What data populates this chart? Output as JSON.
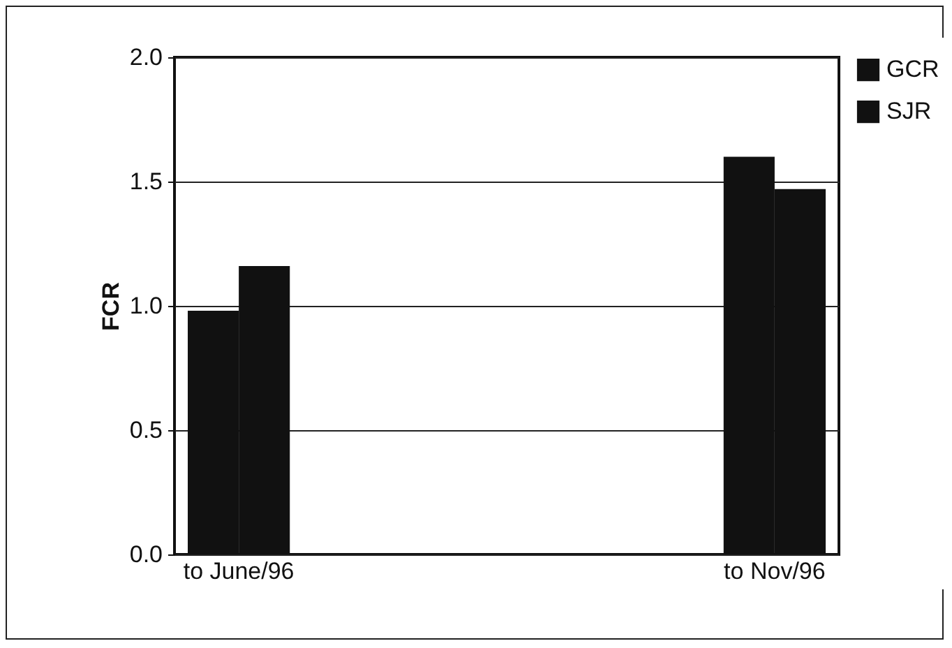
{
  "chart_data": {
    "type": "bar",
    "categories": [
      "to June/96",
      "to Nov/96"
    ],
    "ylabel": "FCR",
    "series": [
      {
        "name": "GCR",
        "color": "#111111",
        "values": [
          0.98,
          1.6
        ]
      },
      {
        "name": "SJR",
        "color": "#111111",
        "values": [
          1.16,
          1.47
        ]
      }
    ],
    "ylim": [
      0,
      2
    ],
    "yticks": [
      {
        "value": 0,
        "label": "0.0"
      },
      {
        "value": 0.5,
        "label": "0.5"
      },
      {
        "value": 1,
        "label": "1.0"
      },
      {
        "value": 1.5,
        "label": "1.5"
      },
      {
        "value": 2,
        "label": "2.0"
      }
    ],
    "grid": "y",
    "legend": "right"
  }
}
